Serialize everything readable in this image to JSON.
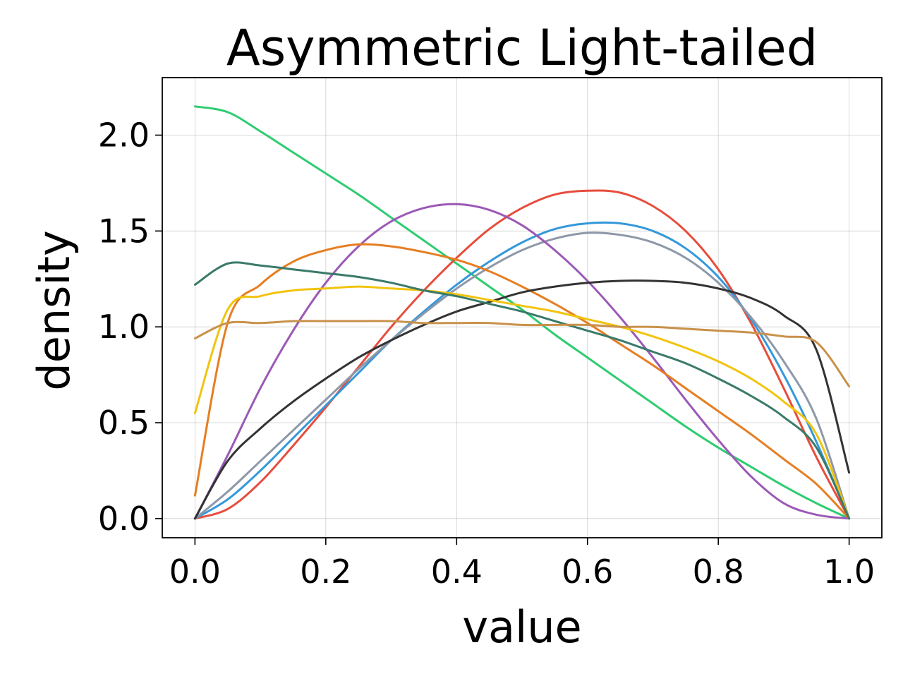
{
  "chart_data": {
    "type": "line",
    "title": "Asymmetric Light-tailed",
    "xlabel": "value",
    "ylabel": "density",
    "xlim": [
      -0.05,
      1.05
    ],
    "ylim": [
      -0.1,
      2.3
    ],
    "xticks": [
      0.0,
      0.2,
      0.4,
      0.6,
      0.8,
      1.0
    ],
    "xtick_labels": [
      "0.0",
      "0.2",
      "0.4",
      "0.6",
      "0.8",
      "1.0"
    ],
    "yticks": [
      0.0,
      0.5,
      1.0,
      1.5,
      2.0
    ],
    "ytick_labels": [
      "0.0",
      "0.5",
      "1.0",
      "1.5",
      "2.0"
    ],
    "grid": true,
    "legend": "none",
    "x": [
      0.0,
      0.05,
      0.1,
      0.15,
      0.2,
      0.25,
      0.3,
      0.35,
      0.4,
      0.45,
      0.5,
      0.55,
      0.6,
      0.65,
      0.7,
      0.75,
      0.8,
      0.85,
      0.9,
      0.95,
      1.0
    ],
    "series": [
      {
        "color": "#2ecc71",
        "values": [
          2.15,
          2.12,
          2.02,
          1.91,
          1.8,
          1.69,
          1.57,
          1.45,
          1.33,
          1.21,
          1.09,
          0.96,
          0.84,
          0.72,
          0.6,
          0.48,
          0.37,
          0.27,
          0.17,
          0.08,
          0.0
        ]
      },
      {
        "color": "#e74c3c",
        "values": [
          0.0,
          0.05,
          0.19,
          0.38,
          0.58,
          0.79,
          1.0,
          1.19,
          1.36,
          1.51,
          1.62,
          1.69,
          1.71,
          1.7,
          1.63,
          1.5,
          1.3,
          1.02,
          0.68,
          0.32,
          0.0
        ]
      },
      {
        "color": "#3498db",
        "values": [
          0.0,
          0.1,
          0.25,
          0.42,
          0.59,
          0.76,
          0.93,
          1.08,
          1.22,
          1.34,
          1.44,
          1.51,
          1.54,
          1.54,
          1.5,
          1.41,
          1.26,
          1.04,
          0.75,
          0.4,
          0.0
        ]
      },
      {
        "color": "#8e98a8",
        "values": [
          0.0,
          0.14,
          0.3,
          0.46,
          0.62,
          0.78,
          0.93,
          1.07,
          1.2,
          1.31,
          1.4,
          1.46,
          1.49,
          1.48,
          1.44,
          1.36,
          1.23,
          1.05,
          0.82,
          0.52,
          0.0
        ]
      },
      {
        "color": "#9b59b6",
        "values": [
          0.0,
          0.33,
          0.68,
          0.98,
          1.23,
          1.42,
          1.55,
          1.62,
          1.64,
          1.61,
          1.53,
          1.4,
          1.24,
          1.05,
          0.84,
          0.62,
          0.41,
          0.22,
          0.08,
          0.02,
          0.0
        ]
      },
      {
        "color": "#e67e22",
        "values": [
          0.12,
          1.02,
          1.22,
          1.34,
          1.4,
          1.43,
          1.42,
          1.39,
          1.35,
          1.29,
          1.21,
          1.12,
          1.02,
          0.91,
          0.8,
          0.68,
          0.56,
          0.44,
          0.31,
          0.18,
          0.0
        ]
      },
      {
        "color": "#333333",
        "values": [
          0.0,
          0.3,
          0.47,
          0.61,
          0.73,
          0.84,
          0.93,
          1.01,
          1.08,
          1.13,
          1.18,
          1.21,
          1.23,
          1.24,
          1.24,
          1.23,
          1.2,
          1.15,
          1.06,
          0.88,
          0.24
        ]
      },
      {
        "color": "#f1c40f",
        "values": [
          0.55,
          1.09,
          1.16,
          1.19,
          1.2,
          1.21,
          1.2,
          1.19,
          1.17,
          1.14,
          1.11,
          1.08,
          1.04,
          1.0,
          0.95,
          0.89,
          0.82,
          0.73,
          0.61,
          0.44,
          0.0
        ]
      },
      {
        "color": "#3a7a6a",
        "values": [
          1.22,
          1.33,
          1.32,
          1.3,
          1.28,
          1.26,
          1.23,
          1.19,
          1.16,
          1.12,
          1.08,
          1.03,
          0.98,
          0.93,
          0.87,
          0.81,
          0.73,
          0.64,
          0.53,
          0.37,
          0.0
        ]
      },
      {
        "color": "#c9914a",
        "values": [
          0.94,
          1.02,
          1.02,
          1.03,
          1.03,
          1.03,
          1.03,
          1.02,
          1.02,
          1.02,
          1.01,
          1.01,
          1.01,
          1.0,
          1.0,
          0.99,
          0.98,
          0.97,
          0.95,
          0.92,
          0.69
        ]
      }
    ]
  }
}
